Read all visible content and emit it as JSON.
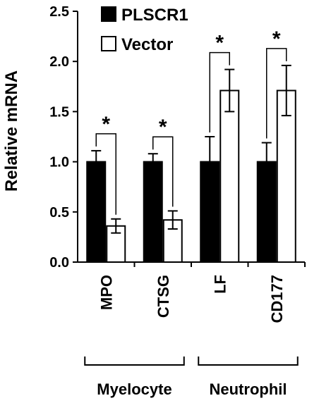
{
  "chart_data": {
    "type": "bar",
    "title": "",
    "xlabel": "",
    "ylabel": "Relative mRNA",
    "ylim": [
      0,
      2.5
    ],
    "yticks": [
      "0.0",
      "0.5",
      "1.0",
      "1.5",
      "2.0",
      "2.5"
    ],
    "categories": [
      "MPO",
      "CTSG",
      "LF",
      "CD177"
    ],
    "series": [
      {
        "name": "PLSCR1",
        "values": [
          1.0,
          1.0,
          1.0,
          1.0
        ],
        "errors": [
          0.11,
          0.08,
          0.25,
          0.19
        ],
        "fill": "#000000"
      },
      {
        "name": "Vector",
        "values": [
          0.36,
          0.42,
          1.71,
          1.71
        ],
        "errors": [
          0.07,
          0.09,
          0.21,
          0.25
        ],
        "fill": "#ffffff"
      }
    ],
    "significance": [
      {
        "category": "MPO",
        "label": "*"
      },
      {
        "category": "CTSG",
        "label": "*"
      },
      {
        "category": "LF",
        "label": "*"
      },
      {
        "category": "CD177",
        "label": "*"
      }
    ],
    "groups": [
      {
        "label": "Myelocyte",
        "categories": [
          "MPO",
          "CTSG"
        ]
      },
      {
        "label": "Neutrophil",
        "categories": [
          "LF",
          "CD177"
        ]
      }
    ],
    "legend": "top-left",
    "grid": false
  }
}
